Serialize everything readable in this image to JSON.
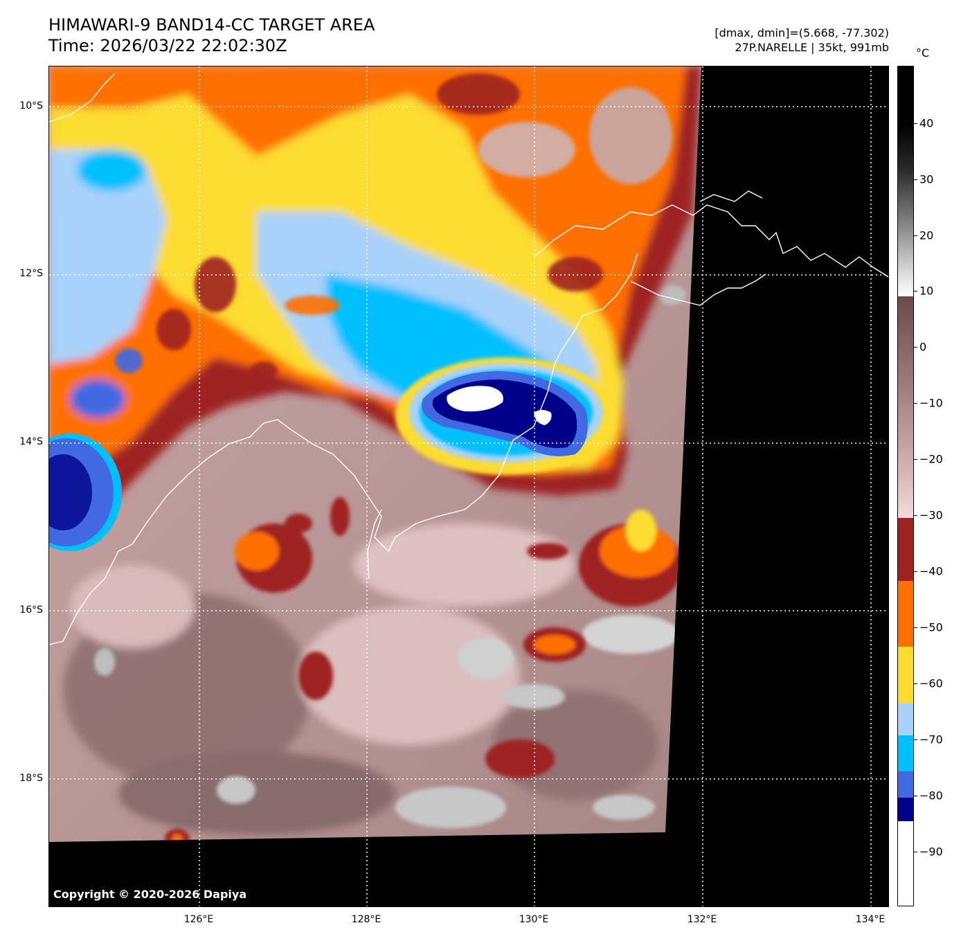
{
  "header": {
    "title_line1": "HIMAWARI-9 BAND14-CC TARGET AREA",
    "title_line2": "Time: 2026/03/22 22:02:30Z",
    "info_line1": "[dmax, dmin]=(5.668, -77.302)",
    "info_line2": "27P.NARELLE | 35kt, 991mb"
  },
  "map": {
    "lat_labels": [
      "10°S",
      "12°S",
      "14°S",
      "16°S",
      "18°S"
    ],
    "lon_labels": [
      "126°E",
      "128°E",
      "130°E",
      "132°E",
      "134°E"
    ],
    "copyright": "Copyright © 2020-2026 Dapiya"
  },
  "colorbar": {
    "unit": "°C",
    "tick_labels": [
      "40",
      "30",
      "20",
      "10",
      "0",
      "−10",
      "−20",
      "−30",
      "−40",
      "−50",
      "−60",
      "−70",
      "−80",
      "−90"
    ],
    "colors": {
      "dark_red": "#9e2222",
      "orange": "#ff7000",
      "yellow": "#fddc32",
      "light_blue": "#a8d2fa",
      "cyan": "#00bfff",
      "royal_blue": "#4169e1",
      "navy": "#00008b",
      "white": "#ffffff"
    }
  }
}
